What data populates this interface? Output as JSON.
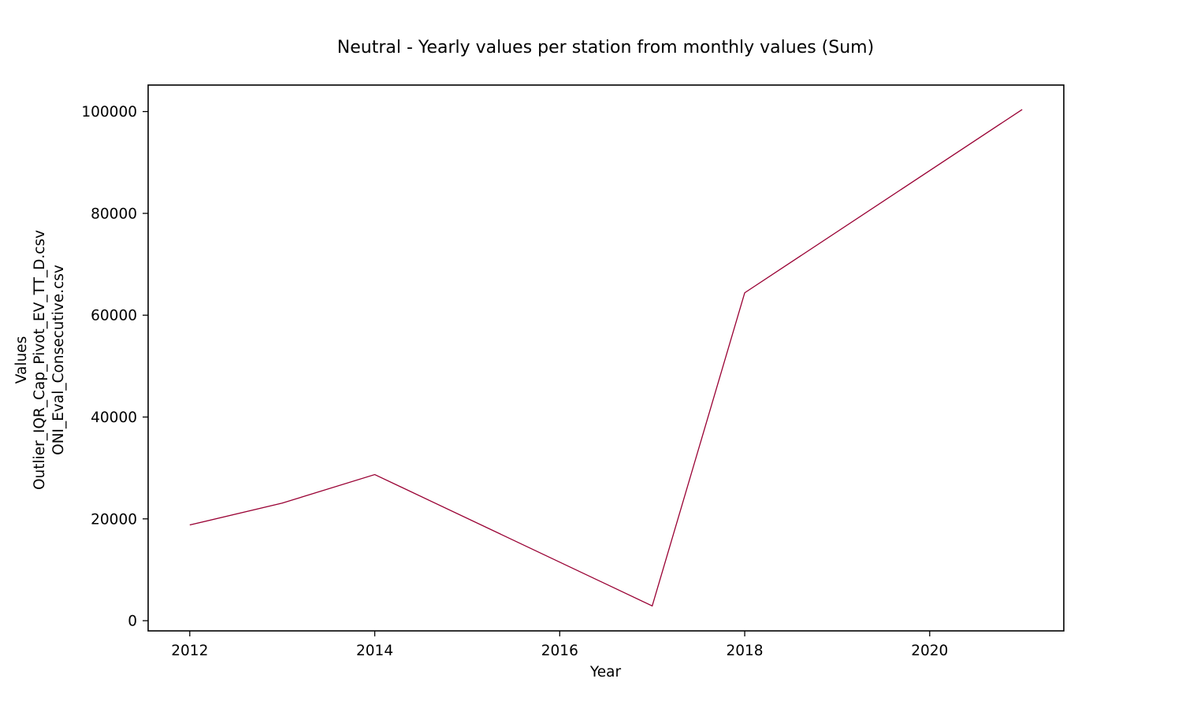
{
  "chart_data": {
    "type": "line",
    "title": "Neutral - Yearly values per station from monthly values (Sum)",
    "xlabel": "Year",
    "ylabel_lines": [
      "Values",
      "Outlier_IQR_Cap_Pivot_EV_TT_D.csv",
      "ONI_Eval_Consecutive.csv"
    ],
    "x_ticks": [
      "2012",
      "2014",
      "2016",
      "2018",
      "2020"
    ],
    "y_ticks": [
      "0",
      "20000",
      "40000",
      "60000",
      "80000",
      "100000"
    ],
    "xlim": [
      2011.55,
      2021.45
    ],
    "ylim": [
      -2000,
      105200
    ],
    "grid": false,
    "legend": "none",
    "series": [
      {
        "color": "#990033",
        "x": [
          2012,
          2013,
          2014,
          2017,
          2018,
          2021
        ],
        "y": [
          18800,
          23100,
          28700,
          2900,
          64400,
          100400
        ]
      }
    ]
  }
}
